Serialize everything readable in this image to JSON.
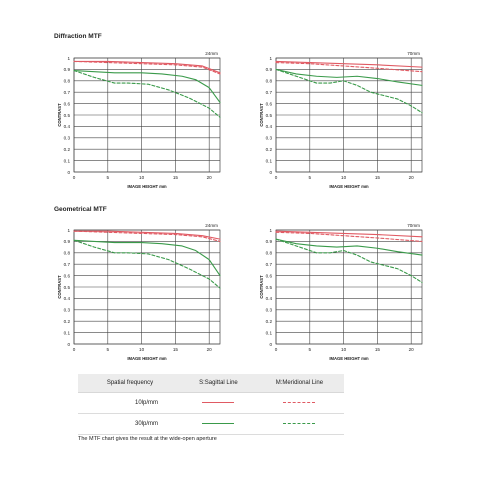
{
  "page": {
    "section_diffraction": "Diffraction MTF",
    "section_geometrical": "Geometrical MTF",
    "footer_note": "The MTF chart gives the result at the wide-open aperture"
  },
  "legend": {
    "headers": [
      "Spatial frequency",
      "S:Sagittal Line",
      "M:Meridional Line"
    ],
    "rows": [
      {
        "freq": "10lp/mm",
        "sagittal_color": "#e05a63",
        "meridional_color": "#e05a63"
      },
      {
        "freq": "30lp/mm",
        "sagittal_color": "#3a9a4a",
        "meridional_color": "#3a9a4a"
      }
    ]
  },
  "colors": {
    "lp10": "#e05a63",
    "lp30": "#3a9a4a",
    "grid": "#444444"
  },
  "chart_data": [
    {
      "type": "line",
      "group": "Diffraction MTF",
      "focal_label": "24mm",
      "xlabel": "IMAGE HEIGHT  mm",
      "ylabel": "CONTRAST",
      "xlim": [
        0,
        21.6
      ],
      "ylim": [
        0,
        1
      ],
      "xticks": [
        0,
        5,
        10,
        15,
        20
      ],
      "yticks": [
        0,
        0.1,
        0.2,
        0.3,
        0.4,
        0.5,
        0.6,
        0.7,
        0.8,
        0.9,
        1
      ],
      "ytick_labels": [
        "0",
        "0.1",
        "0.2",
        "0.3",
        "0.4",
        "0.5",
        "0.6",
        "0.7",
        "0.8",
        "0.9",
        "1"
      ],
      "series": [
        {
          "name": "10lp/mm S",
          "x": [
            0,
            5,
            10,
            15,
            19,
            21.6
          ],
          "y": [
            0.97,
            0.97,
            0.96,
            0.95,
            0.93,
            0.87
          ]
        },
        {
          "name": "10lp/mm M",
          "x": [
            0,
            5,
            10,
            15,
            19,
            21.6
          ],
          "y": [
            0.97,
            0.96,
            0.95,
            0.94,
            0.92,
            0.86
          ]
        },
        {
          "name": "30lp/mm S",
          "x": [
            0,
            3,
            6,
            10,
            13,
            16,
            18,
            20,
            21.6
          ],
          "y": [
            0.89,
            0.88,
            0.87,
            0.87,
            0.86,
            0.84,
            0.81,
            0.74,
            0.61
          ]
        },
        {
          "name": "30lp/mm M",
          "x": [
            0,
            3,
            6,
            8,
            11,
            14,
            17,
            20,
            21.6
          ],
          "y": [
            0.89,
            0.83,
            0.78,
            0.78,
            0.77,
            0.72,
            0.65,
            0.56,
            0.48
          ]
        }
      ]
    },
    {
      "type": "line",
      "group": "Diffraction MTF",
      "focal_label": "70mm",
      "xlabel": "IMAGE HEIGHT  mm",
      "ylabel": "CONTRAST",
      "xlim": [
        0,
        21.6
      ],
      "ylim": [
        0,
        1
      ],
      "xticks": [
        0,
        5,
        10,
        15,
        20
      ],
      "yticks": [
        0,
        0.1,
        0.2,
        0.3,
        0.4,
        0.5,
        0.6,
        0.7,
        0.8,
        0.9,
        1
      ],
      "ytick_labels": [
        "0",
        "0.1",
        "0.2",
        "0.3",
        "0.4",
        "0.5",
        "0.6",
        "0.7",
        "0.8",
        "0.9",
        "1"
      ],
      "series": [
        {
          "name": "10lp/mm S",
          "x": [
            0,
            5,
            10,
            15,
            21.6
          ],
          "y": [
            0.97,
            0.96,
            0.95,
            0.94,
            0.92
          ]
        },
        {
          "name": "10lp/mm M",
          "x": [
            0,
            5,
            10,
            15,
            21.6
          ],
          "y": [
            0.96,
            0.95,
            0.93,
            0.91,
            0.88
          ]
        },
        {
          "name": "30lp/mm S",
          "x": [
            0,
            3,
            6,
            9,
            12,
            15,
            18,
            21.6
          ],
          "y": [
            0.9,
            0.86,
            0.84,
            0.83,
            0.84,
            0.82,
            0.79,
            0.76
          ]
        },
        {
          "name": "30lp/mm M",
          "x": [
            0,
            3,
            6,
            8,
            10,
            12,
            14,
            16,
            18,
            20,
            21.6
          ],
          "y": [
            0.9,
            0.84,
            0.78,
            0.78,
            0.8,
            0.76,
            0.7,
            0.67,
            0.64,
            0.58,
            0.52
          ]
        }
      ]
    },
    {
      "type": "line",
      "group": "Geometrical MTF",
      "focal_label": "24mm",
      "xlabel": "IMAGE HEIGHT  mm",
      "ylabel": "CONTRAST",
      "xlim": [
        0,
        21.6
      ],
      "ylim": [
        0,
        1
      ],
      "xticks": [
        0,
        5,
        10,
        15,
        20
      ],
      "yticks": [
        0,
        0.1,
        0.2,
        0.3,
        0.4,
        0.5,
        0.6,
        0.7,
        0.8,
        0.9,
        1
      ],
      "ytick_labels": [
        "0",
        "0.1",
        "0.2",
        "0.3",
        "0.4",
        "0.5",
        "0.6",
        "0.7",
        "0.8",
        "0.9",
        "1"
      ],
      "series": [
        {
          "name": "10lp/mm S",
          "x": [
            0,
            5,
            10,
            15,
            19,
            21.6
          ],
          "y": [
            0.99,
            0.99,
            0.98,
            0.97,
            0.95,
            0.92
          ]
        },
        {
          "name": "10lp/mm M",
          "x": [
            0,
            5,
            10,
            15,
            19,
            21.6
          ],
          "y": [
            0.99,
            0.98,
            0.97,
            0.96,
            0.94,
            0.9
          ]
        },
        {
          "name": "30lp/mm S",
          "x": [
            0,
            3,
            6,
            10,
            13,
            16,
            18,
            20,
            21.6
          ],
          "y": [
            0.91,
            0.9,
            0.89,
            0.89,
            0.88,
            0.86,
            0.82,
            0.74,
            0.6
          ]
        },
        {
          "name": "30lp/mm M",
          "x": [
            0,
            3,
            6,
            8,
            11,
            14,
            17,
            20,
            21.6
          ],
          "y": [
            0.91,
            0.85,
            0.8,
            0.8,
            0.79,
            0.74,
            0.66,
            0.57,
            0.49
          ]
        }
      ]
    },
    {
      "type": "line",
      "group": "Geometrical MTF",
      "focal_label": "70mm",
      "xlabel": "IMAGE HEIGHT  mm",
      "ylabel": "CONTRAST",
      "xlim": [
        0,
        21.6
      ],
      "ylim": [
        0,
        1
      ],
      "xticks": [
        0,
        5,
        10,
        15,
        20
      ],
      "yticks": [
        0,
        0.1,
        0.2,
        0.3,
        0.4,
        0.5,
        0.6,
        0.7,
        0.8,
        0.9,
        1
      ],
      "ytick_labels": [
        "0",
        "0.1",
        "0.2",
        "0.3",
        "0.4",
        "0.5",
        "0.6",
        "0.7",
        "0.8",
        "0.9",
        "1"
      ],
      "series": [
        {
          "name": "10lp/mm S",
          "x": [
            0,
            5,
            10,
            15,
            21.6
          ],
          "y": [
            0.99,
            0.98,
            0.97,
            0.96,
            0.94
          ]
        },
        {
          "name": "10lp/mm M",
          "x": [
            0,
            5,
            10,
            15,
            21.6
          ],
          "y": [
            0.98,
            0.97,
            0.95,
            0.93,
            0.9
          ]
        },
        {
          "name": "30lp/mm S",
          "x": [
            0,
            3,
            6,
            9,
            12,
            15,
            18,
            21.6
          ],
          "y": [
            0.92,
            0.88,
            0.86,
            0.85,
            0.86,
            0.84,
            0.81,
            0.78
          ]
        },
        {
          "name": "30lp/mm M",
          "x": [
            0,
            3,
            6,
            8,
            10,
            12,
            14,
            16,
            18,
            20,
            21.6
          ],
          "y": [
            0.92,
            0.86,
            0.8,
            0.8,
            0.82,
            0.78,
            0.72,
            0.69,
            0.66,
            0.6,
            0.54
          ]
        }
      ]
    }
  ]
}
